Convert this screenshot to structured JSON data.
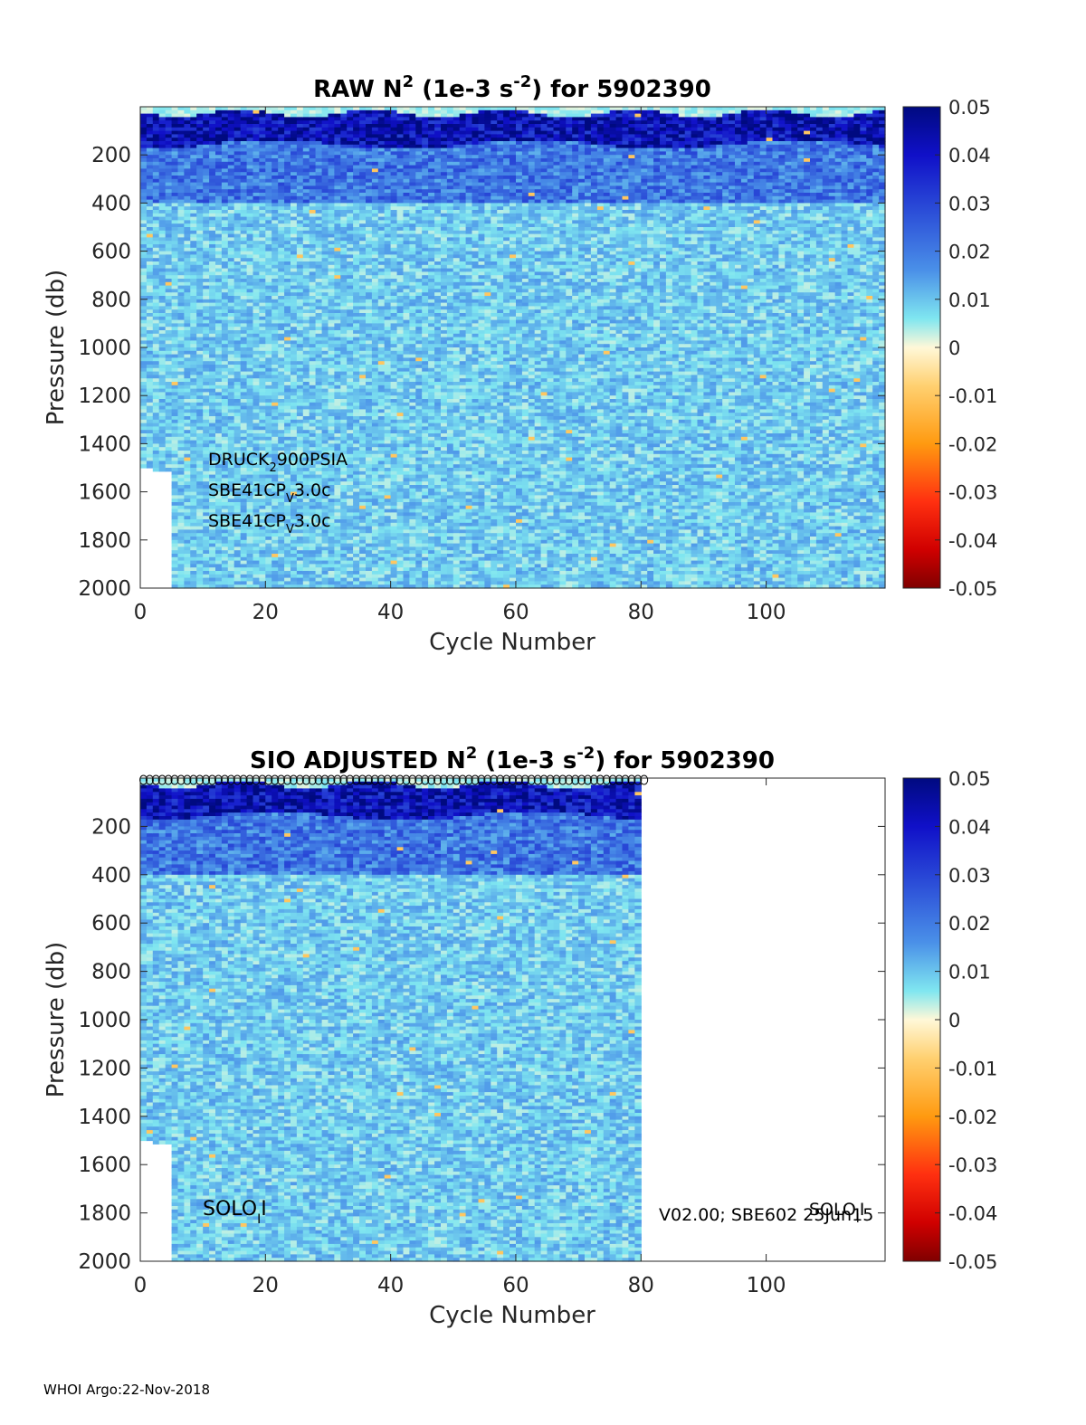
{
  "footer": "WHOI Argo:22-Nov-2018",
  "colorbar": {
    "min": -0.05,
    "max": 0.05,
    "tick_labels": [
      "0.05",
      "0.04",
      "0.03",
      "0.02",
      "0.01",
      "0",
      "-0.01",
      "-0.02",
      "-0.03",
      "-0.04",
      "-0.05"
    ],
    "tick_values": [
      0.05,
      0.04,
      0.03,
      0.02,
      0.01,
      0,
      -0.01,
      -0.02,
      -0.03,
      -0.04,
      -0.05
    ],
    "colormap": "blue-cyan-white-yellow-red"
  },
  "chart_data": [
    {
      "type": "heatmap",
      "title": "RAW N² (1e-3 s⁻²) for 5902390",
      "title_parts": {
        "a": "RAW N",
        "sup1": "2",
        "b": " (1e-3 s",
        "sup2": "-2",
        "c": ") for 5902390"
      },
      "xlabel": "Cycle Number",
      "ylabel": "Pressure (db)",
      "xlim": [
        0,
        119
      ],
      "ylim": [
        2000,
        0
      ],
      "x_ticks": [
        0,
        20,
        40,
        60,
        80,
        100
      ],
      "y_ticks": [
        200,
        400,
        600,
        800,
        1000,
        1200,
        1400,
        1600,
        1800,
        2000
      ],
      "data_cycles": [
        0,
        119
      ],
      "annotations": [
        {
          "main": "DRUCK",
          "sub": "2",
          "rest": "900PSIA"
        },
        {
          "main": "SBE41CP",
          "sub": "V",
          "rest": "3.0c"
        },
        {
          "main": "SBE41CP",
          "sub": "V",
          "rest": "3.0c"
        }
      ],
      "features": {
        "thermocline_max": 0.05,
        "thermocline_depth_db": [
          20,
          160
        ],
        "background_value": 0.009
      }
    },
    {
      "type": "heatmap",
      "title": "SIO ADJUSTED N² (1e-3 s⁻²) for 5902390",
      "title_parts": {
        "a": "SIO  ADJUSTED N",
        "sup1": "2",
        "b": " (1e-3 s",
        "sup2": "-2",
        "c": ") for 5902390"
      },
      "xlabel": "Cycle Number",
      "ylabel": "Pressure (db)",
      "xlim": [
        0,
        119
      ],
      "ylim": [
        2000,
        0
      ],
      "x_ticks": [
        0,
        20,
        40,
        60,
        80,
        100
      ],
      "y_ticks": [
        200,
        400,
        600,
        800,
        1000,
        1200,
        1400,
        1600,
        1800,
        2000
      ],
      "data_cycles": [
        0,
        80
      ],
      "annotations": [
        {
          "main": "SOLO",
          "sub": "I",
          "rest": "I"
        },
        {
          "main": "V02.00; SBE602 25Jun15",
          "sub": "",
          "rest": ""
        },
        {
          "main": "SOLO",
          "sub": "I",
          "rest": "I"
        }
      ],
      "features": {
        "thermocline_max": 0.05,
        "thermocline_depth_db": [
          20,
          160
        ],
        "background_value": 0.009
      }
    }
  ]
}
